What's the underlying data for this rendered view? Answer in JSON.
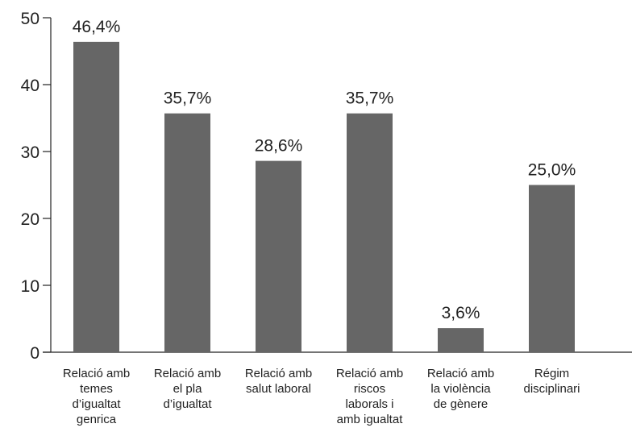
{
  "chart_data": {
    "type": "bar",
    "categories": [
      [
        "Relació amb",
        "temes",
        "d’igualtat",
        "genrica"
      ],
      [
        "Relació amb",
        "el pla",
        "d’igualtat"
      ],
      [
        "Relació amb",
        "salut laboral"
      ],
      [
        "Relació amb",
        "riscos",
        "laborals i",
        "amb igualtat"
      ],
      [
        "Relació amb",
        "la violència",
        "de gènere"
      ],
      [
        "Régim",
        "disciplinari"
      ]
    ],
    "values": [
      46.4,
      35.7,
      28.6,
      35.7,
      3.6,
      25.0
    ],
    "data_labels": [
      "46,4%",
      "35,7%",
      "28,6%",
      "35,7%",
      "3,6%",
      "25,0%"
    ],
    "yticks": [
      "0",
      "10",
      "20",
      "30",
      "40",
      "50"
    ],
    "ylim": [
      0,
      50
    ],
    "bar_color": "#666666",
    "axis_color": "#222222",
    "grid": false,
    "legend": false
  }
}
